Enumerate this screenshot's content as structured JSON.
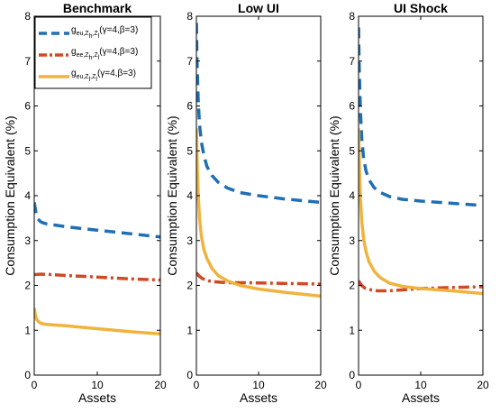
{
  "colors": {
    "eu": "#1f6fb4",
    "ee": "#cf4a25",
    "eu_low": "#f0b33f",
    "axis": "#000000"
  },
  "legend_entries": [
    {
      "series": 0,
      "base": "g",
      "sub": "eu,Z",
      "sub2": "h",
      "sub3": ",Z",
      "sub4": "l",
      "rest": "(γ=4,β=3)"
    },
    {
      "series": 1,
      "base": "g",
      "sub": "ee,Z",
      "sub2": "h",
      "sub3": ",Z",
      "sub4": "l",
      "rest": "(γ=4,β=3)"
    },
    {
      "series": 2,
      "base": "g",
      "sub": "eu,Z",
      "sub2": "l",
      "sub3": ",Z",
      "sub4": "l",
      "rest": "(γ=4,β=3)"
    }
  ],
  "chart_data": [
    {
      "type": "line",
      "title": "Benchmark",
      "xlabel": "Assets",
      "ylabel": "Consumption Equivalent (%)",
      "xlim": [
        0,
        20
      ],
      "ylim": [
        0,
        8
      ],
      "xticks": [
        0,
        10,
        20
      ],
      "yticks": [
        0,
        1,
        2,
        3,
        4,
        5,
        6,
        7,
        8
      ],
      "legend": "top-left",
      "series": [
        {
          "name": "g_{eu,Z_h,Z_l}(γ=4,β=3)",
          "style": "dashed",
          "color": "#1f6fb4",
          "x": [
            0,
            0.3,
            0.6,
            1,
            1.5,
            2,
            3,
            5,
            8,
            12,
            16,
            20
          ],
          "y": [
            3.85,
            3.6,
            3.48,
            3.42,
            3.39,
            3.37,
            3.35,
            3.31,
            3.26,
            3.2,
            3.14,
            3.08
          ]
        },
        {
          "name": "g_{ee,Z_h,Z_l}(γ=4,β=3)",
          "style": "dashdot",
          "color": "#cf4a25",
          "x": [
            0,
            1,
            3,
            5,
            8,
            12,
            16,
            20
          ],
          "y": [
            2.24,
            2.25,
            2.24,
            2.22,
            2.2,
            2.17,
            2.14,
            2.12
          ]
        },
        {
          "name": "g_{eu,Z_l,Z_l}(γ=4,β=3)",
          "style": "solid",
          "color": "#f0b33f",
          "x": [
            0,
            0.2,
            0.4,
            0.7,
            1,
            1.5,
            2,
            3,
            5,
            8,
            12,
            16,
            20
          ],
          "y": [
            1.5,
            1.32,
            1.24,
            1.19,
            1.16,
            1.14,
            1.13,
            1.12,
            1.1,
            1.06,
            1.01,
            0.96,
            0.92
          ]
        }
      ]
    },
    {
      "type": "line",
      "title": "Low UI",
      "xlabel": "Assets",
      "ylabel": "Consumption Equivalent (%)",
      "xlim": [
        0,
        20
      ],
      "ylim": [
        0,
        8
      ],
      "xticks": [
        0,
        10,
        20
      ],
      "yticks": [
        0,
        1,
        2,
        3,
        4,
        5,
        6,
        7,
        8
      ],
      "series": [
        {
          "style": "dashed",
          "color": "#1f6fb4",
          "x": [
            0,
            0.1,
            0.3,
            0.5,
            0.8,
            1.2,
            1.7,
            2.5,
            3.5,
            5,
            7,
            10,
            14,
            20
          ],
          "y": [
            7.85,
            7.0,
            6.1,
            5.6,
            5.2,
            4.9,
            4.65,
            4.45,
            4.3,
            4.17,
            4.07,
            4.0,
            3.93,
            3.85
          ]
        },
        {
          "style": "dashdot",
          "color": "#cf4a25",
          "x": [
            0,
            0.5,
            1,
            2,
            3,
            5,
            8,
            12,
            16,
            20
          ],
          "y": [
            2.28,
            2.2,
            2.15,
            2.1,
            2.08,
            2.06,
            2.06,
            2.05,
            2.04,
            2.03
          ]
        },
        {
          "style": "solid",
          "color": "#f0b33f",
          "x": [
            0,
            0.15,
            0.3,
            0.5,
            0.8,
            1.2,
            1.7,
            2.5,
            3.5,
            5,
            7,
            10,
            14,
            20
          ],
          "y": [
            5.5,
            4.6,
            4.0,
            3.5,
            3.1,
            2.8,
            2.6,
            2.38,
            2.22,
            2.1,
            2.0,
            1.92,
            1.85,
            1.76
          ]
        }
      ]
    },
    {
      "type": "line",
      "title": "UI Shock",
      "xlabel": "Assets",
      "ylabel": "Consumption Equivalent (%)",
      "xlim": [
        0,
        20
      ],
      "ylim": [
        0,
        8
      ],
      "xticks": [
        0,
        10,
        20
      ],
      "yticks": [
        0,
        1,
        2,
        3,
        4,
        5,
        6,
        7,
        8
      ],
      "series": [
        {
          "style": "dashed",
          "color": "#1f6fb4",
          "x": [
            0,
            0.1,
            0.3,
            0.5,
            0.8,
            1.2,
            1.7,
            2.5,
            3.5,
            5,
            7,
            10,
            14,
            20
          ],
          "y": [
            7.75,
            6.9,
            5.9,
            5.3,
            4.85,
            4.55,
            4.35,
            4.18,
            4.07,
            3.98,
            3.92,
            3.88,
            3.84,
            3.78
          ]
        },
        {
          "style": "dashdot",
          "color": "#cf4a25",
          "x": [
            0,
            0.5,
            1,
            2,
            3,
            4,
            5,
            7,
            10,
            14,
            17,
            20
          ],
          "y": [
            2.1,
            2.0,
            1.94,
            1.9,
            1.88,
            1.88,
            1.88,
            1.9,
            1.93,
            1.95,
            1.96,
            1.97
          ]
        },
        {
          "style": "solid",
          "color": "#f0b33f",
          "x": [
            0,
            0.15,
            0.3,
            0.5,
            0.8,
            1.2,
            1.7,
            2.5,
            3.5,
            5,
            7,
            10,
            14,
            20
          ],
          "y": [
            5.5,
            4.6,
            3.95,
            3.45,
            3.05,
            2.75,
            2.52,
            2.32,
            2.17,
            2.05,
            1.98,
            1.93,
            1.89,
            1.82
          ]
        }
      ]
    }
  ]
}
